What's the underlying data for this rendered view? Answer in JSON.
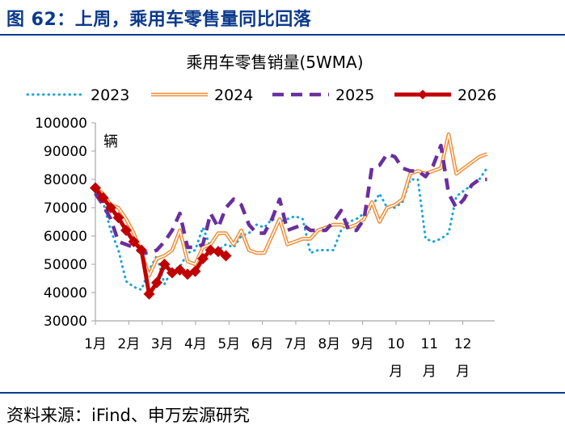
{
  "figure": {
    "title": "图 62：上周，乘用车零售量同比回落",
    "source": "资料来源：iFind、申万宏源研究"
  },
  "colors": {
    "accent": "#0b3a8c",
    "s2023": "#1aa3d8",
    "s2024": "#f08a30",
    "s2025": "#6a2f9e",
    "s2026": "#c00000"
  },
  "chart_data": {
    "type": "line",
    "title": "乘用车零售销量(5WMA)",
    "unit_label": "辆",
    "xlabel": "",
    "ylabel": "",
    "ylim": [
      30000,
      100000
    ],
    "yticks": [
      30000,
      40000,
      50000,
      60000,
      70000,
      80000,
      90000,
      100000
    ],
    "ytick_labels": [
      "30000",
      "40000",
      "50000",
      "60000",
      "70000",
      "80000",
      "90000",
      "100000"
    ],
    "xlim": [
      1,
      53
    ],
    "xtick_labels": [
      "1月",
      "2月",
      "3月",
      "4月",
      "5月",
      "6月",
      "7月",
      "8月",
      "9月",
      "10月",
      "11月",
      "12月"
    ],
    "xtick_positions": [
      1,
      5.35,
      9.7,
      14.05,
      18.4,
      22.75,
      27.1,
      31.45,
      35.8,
      40.15,
      44.5,
      48.85
    ],
    "legend_position": "top",
    "grid": false,
    "series": [
      {
        "name": "2023",
        "style": "dotted",
        "x": [
          1,
          2,
          3,
          4,
          5,
          6,
          7,
          8,
          9,
          10,
          11,
          12,
          13,
          14,
          15,
          16,
          17,
          18,
          19,
          20,
          21,
          22,
          23,
          24,
          25,
          26,
          27,
          28,
          29,
          30,
          31,
          32,
          33,
          34,
          35,
          36,
          37,
          38,
          39,
          40,
          41,
          42,
          43,
          44,
          45,
          46,
          47,
          48,
          49,
          50,
          51,
          52
        ],
        "values": [
          75000,
          72000,
          62000,
          55000,
          44000,
          42000,
          41000,
          48000,
          53000,
          43000,
          48000,
          49000,
          54000,
          55000,
          63000,
          56000,
          55000,
          57000,
          56000,
          60000,
          61000,
          64000,
          63000,
          66000,
          65000,
          66000,
          67000,
          66000,
          54000,
          55000,
          55000,
          55000,
          62000,
          65000,
          66000,
          68000,
          70000,
          75000,
          70000,
          70000,
          72000,
          80000,
          80000,
          59000,
          58000,
          59000,
          61000,
          74000,
          76000,
          78000,
          80000,
          84000
        ]
      },
      {
        "name": "2024",
        "style": "double",
        "x": [
          1,
          2,
          3,
          4,
          5,
          6,
          7,
          8,
          9,
          10,
          11,
          12,
          13,
          14,
          15,
          16,
          17,
          18,
          19,
          20,
          21,
          22,
          23,
          24,
          25,
          26,
          27,
          28,
          29,
          30,
          31,
          32,
          33,
          34,
          35,
          36,
          37,
          38,
          39,
          40,
          41,
          42,
          43,
          44,
          45,
          46,
          47,
          48,
          49,
          50,
          51,
          52
        ],
        "values": [
          77000,
          75000,
          71000,
          70000,
          66000,
          61000,
          54000,
          46000,
          52000,
          53000,
          55000,
          62000,
          51000,
          50000,
          56000,
          57000,
          61000,
          61000,
          57000,
          62000,
          55000,
          54000,
          54000,
          60000,
          66000,
          57000,
          58000,
          59000,
          59000,
          62000,
          63000,
          64000,
          64000,
          63000,
          64000,
          66000,
          72000,
          65000,
          70000,
          71000,
          73000,
          82000,
          83000,
          82000,
          83000,
          84000,
          96000,
          82000,
          84000,
          86000,
          88000,
          89000
        ]
      },
      {
        "name": "2025",
        "style": "dashed",
        "x": [
          1,
          2,
          3,
          4,
          5,
          6,
          7,
          8,
          9,
          10,
          11,
          12,
          13,
          14,
          15,
          16,
          17,
          18,
          19,
          20,
          21,
          22,
          23,
          24,
          25,
          26,
          27,
          28,
          29,
          30,
          31,
          32,
          33,
          34,
          35,
          36,
          37,
          38,
          39,
          40,
          41,
          42,
          43,
          44,
          45,
          46,
          47,
          48,
          49,
          50,
          51,
          52
        ],
        "values": [
          75000,
          71000,
          66000,
          58000,
          57000,
          56000,
          54000,
          54000,
          55000,
          58000,
          62000,
          68000,
          56000,
          56000,
          57000,
          68000,
          63000,
          70000,
          73000,
          71000,
          64000,
          61000,
          61000,
          66000,
          73000,
          62000,
          63000,
          64000,
          62000,
          62000,
          62000,
          65000,
          69000,
          62000,
          62000,
          66000,
          84000,
          85000,
          89000,
          88000,
          84000,
          83000,
          83000,
          81000,
          85000,
          92000,
          75000,
          70000,
          73000,
          78000,
          80000,
          80000
        ]
      },
      {
        "name": "2026",
        "style": "solid-marker",
        "x": [
          1,
          2,
          3,
          4,
          5,
          6,
          7,
          8,
          9,
          10,
          11,
          12,
          13,
          14,
          15,
          16,
          17,
          18
        ],
        "values": [
          77000,
          73500,
          70000,
          66500,
          62000,
          58000,
          55000,
          39500,
          43500,
          50000,
          47000,
          48000,
          46500,
          47500,
          52000,
          55000,
          54500,
          53000
        ]
      }
    ]
  }
}
